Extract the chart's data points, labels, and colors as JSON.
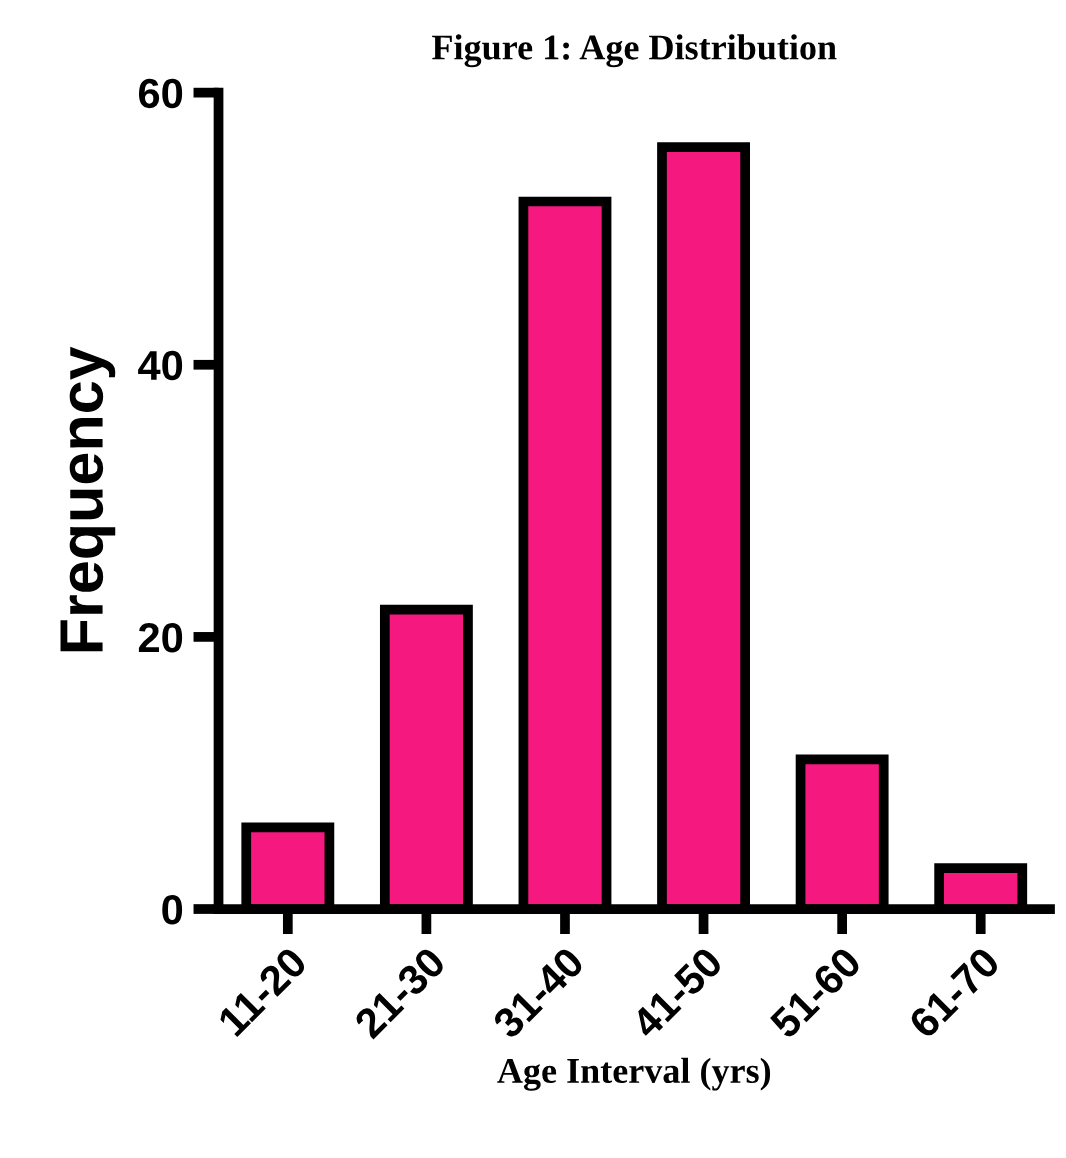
{
  "chart_data": {
    "type": "bar",
    "title": "Figure 1: Age Distribution",
    "xlabel": "Age Interval (yrs)",
    "ylabel": "Frequency",
    "categories": [
      "11-20",
      "21-30",
      "31-40",
      "41-50",
      "51-60",
      "61-70"
    ],
    "values": [
      6,
      22,
      52,
      56,
      11,
      3
    ],
    "color": "#f5187f",
    "ylim": [
      0,
      60
    ],
    "yticks": [
      0,
      20,
      40,
      60
    ],
    "grid": false,
    "legend": false
  }
}
